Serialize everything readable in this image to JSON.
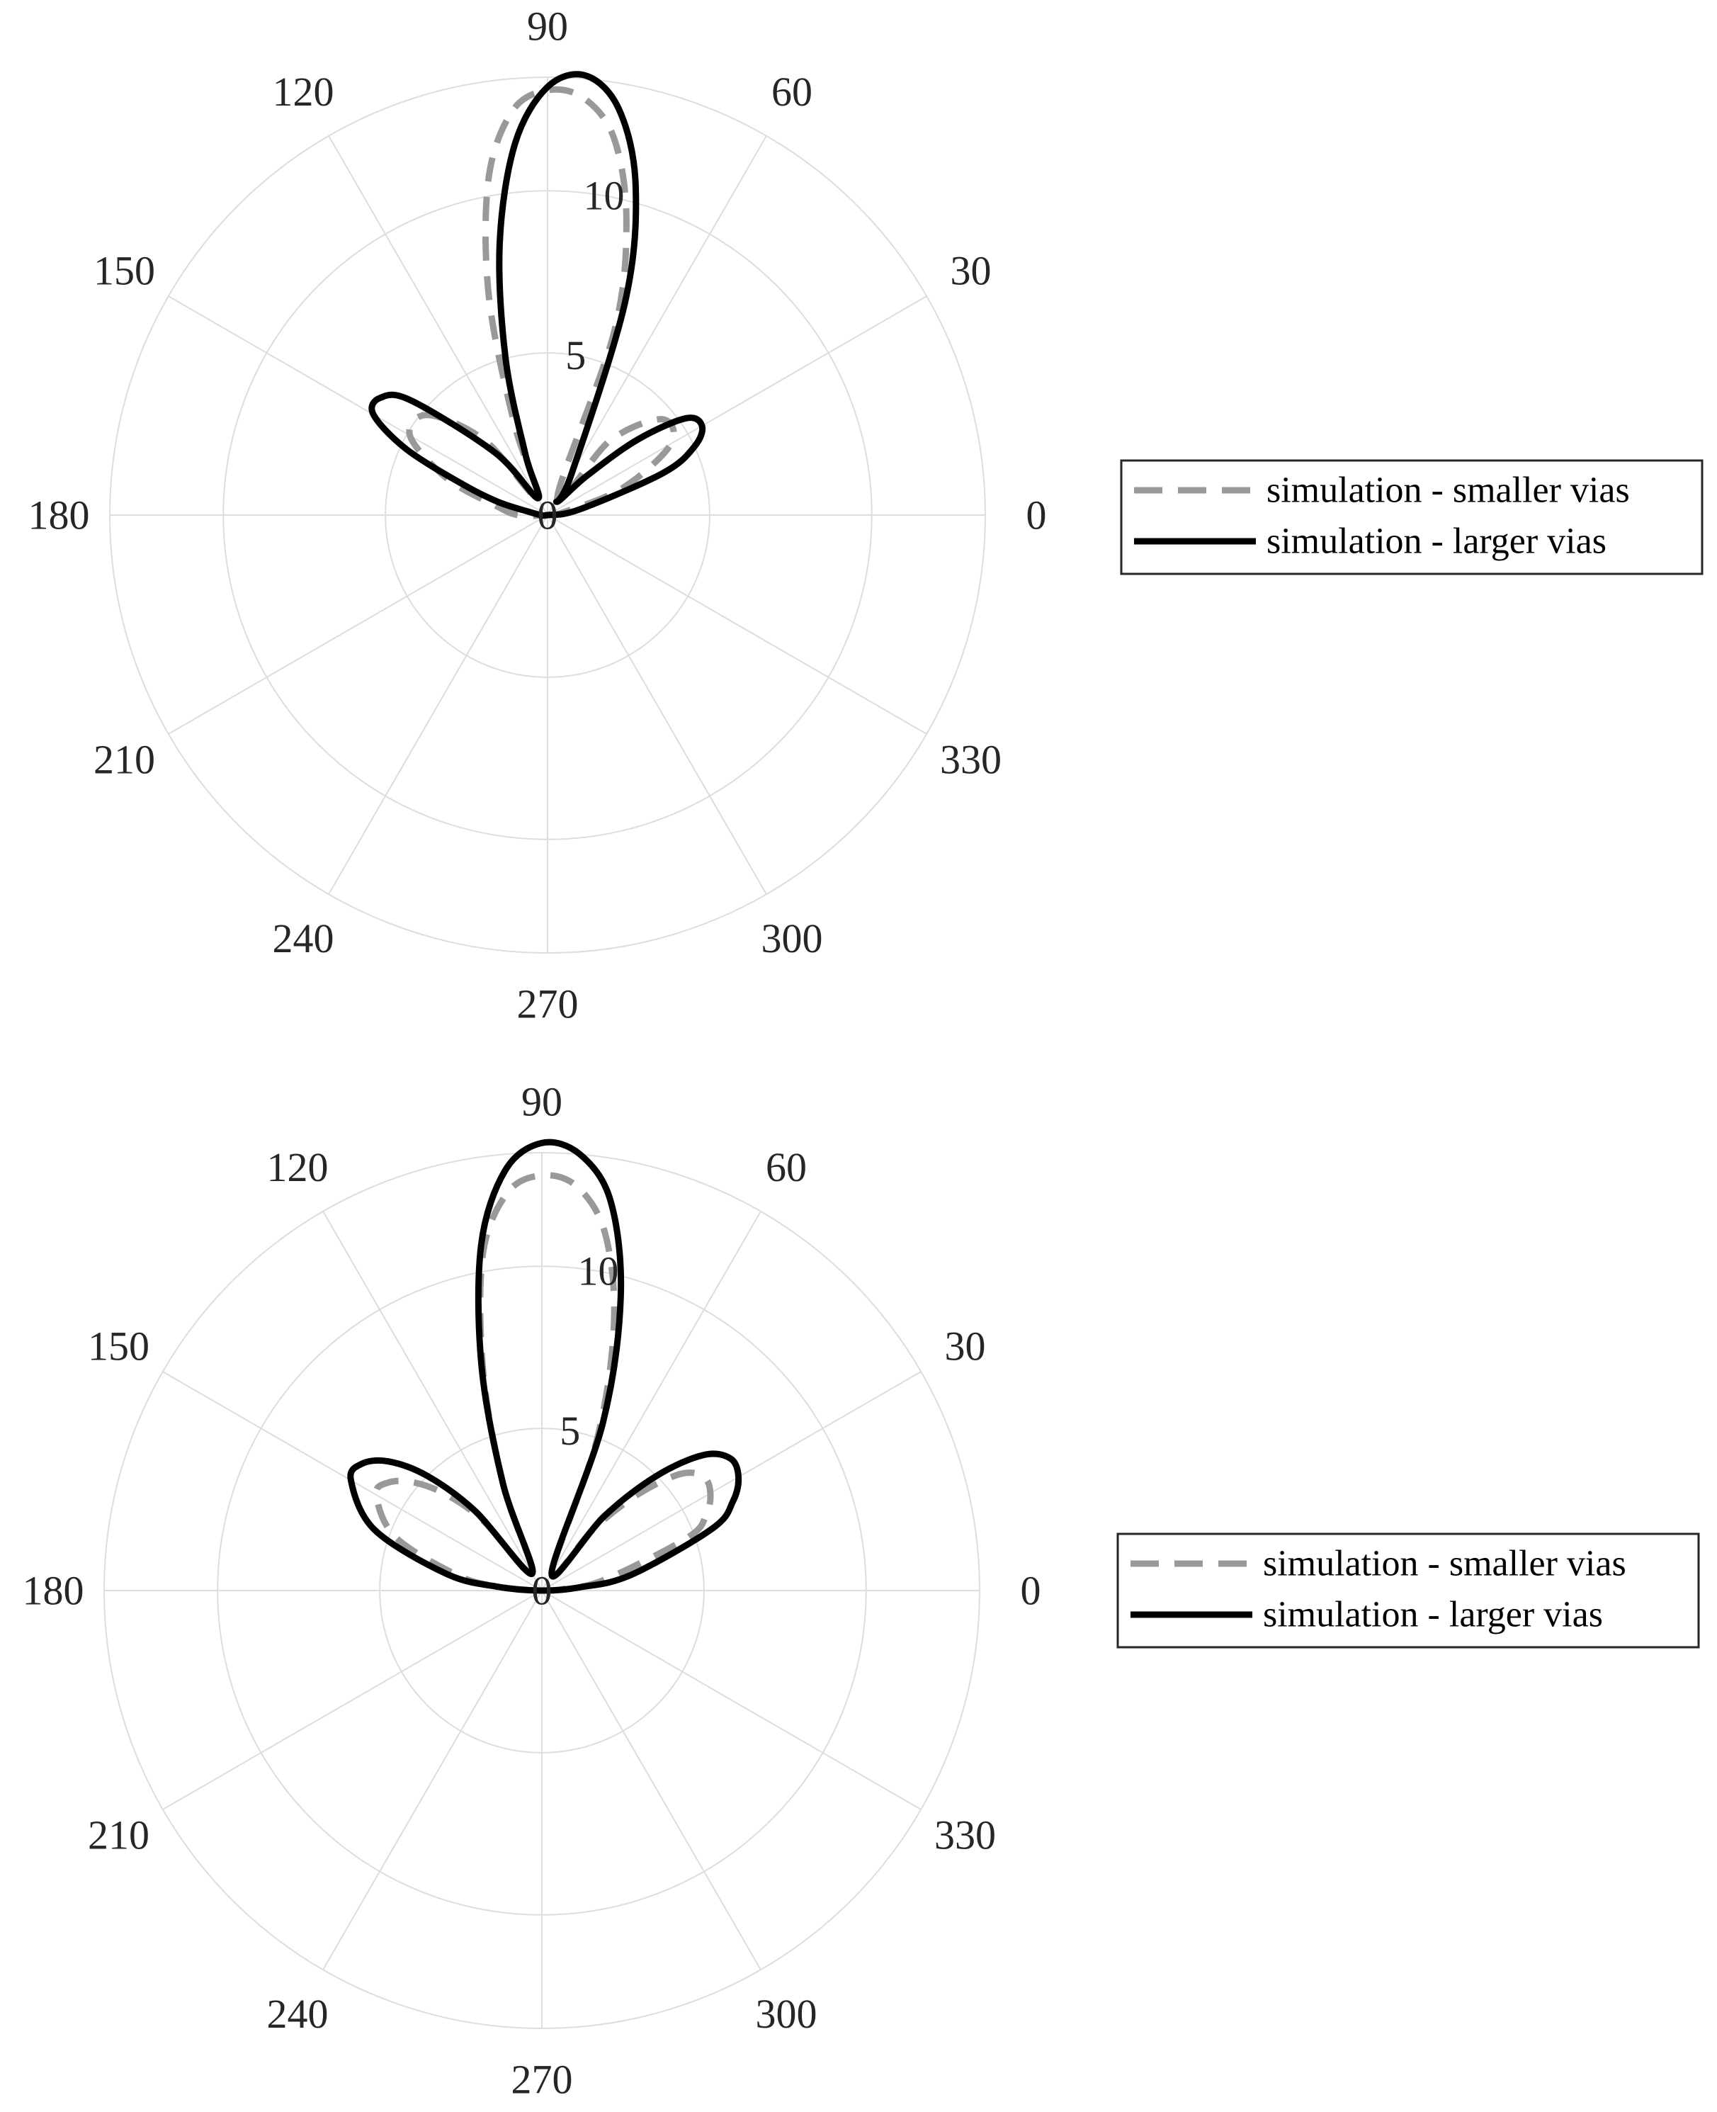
{
  "chart_data": [
    {
      "type": "polar",
      "title": "",
      "theta_unit": "degrees",
      "theta_ticks": [
        "0",
        "30",
        "60",
        "90",
        "120",
        "150",
        "180",
        "210",
        "240",
        "270",
        "300",
        "330"
      ],
      "r_ticks": [
        "0",
        "5",
        "10"
      ],
      "rlim": [
        0,
        13.5
      ],
      "grid": true,
      "legend_placement": "right",
      "series": [
        {
          "name": "simulation - smaller vias",
          "style": "dashed",
          "color": "#999999",
          "theta": [
            10,
            20,
            30,
            40,
            50,
            60,
            70,
            75,
            80,
            85,
            90,
            95,
            100,
            105,
            110,
            120,
            130,
            140,
            150,
            160,
            170,
            180
          ],
          "r": [
            0.5,
            2.5,
            4.4,
            4.6,
            3.0,
            0.6,
            6.0,
            9.4,
            11.8,
            12.9,
            13.1,
            12.5,
            10.5,
            7.0,
            3.0,
            0.6,
            3.0,
            4.8,
            4.9,
            3.3,
            1.6,
            0.9
          ]
        },
        {
          "name": "simulation - larger vias",
          "style": "solid",
          "color": "#000000",
          "theta": [
            10,
            20,
            25,
            30,
            35,
            40,
            45,
            55,
            60,
            70,
            75,
            80,
            85,
            90,
            95,
            100,
            105,
            110,
            120,
            130,
            140,
            145,
            150,
            155,
            160,
            165,
            170,
            180
          ],
          "r": [
            1.0,
            3.8,
            5.0,
            5.5,
            5.2,
            3.6,
            1.7,
            0.5,
            1.5,
            7.0,
            10.5,
            12.7,
            13.6,
            13.2,
            11.5,
            8.5,
            5.0,
            2.0,
            0.6,
            2.5,
            5.5,
            6.3,
            6.2,
            4.8,
            2.8,
            1.6,
            0.6,
            0.2
          ]
        }
      ]
    },
    {
      "type": "polar",
      "title": "",
      "theta_unit": "degrees",
      "theta_ticks": [
        "0",
        "30",
        "60",
        "90",
        "120",
        "150",
        "180",
        "210",
        "240",
        "270",
        "300",
        "330"
      ],
      "r_ticks": [
        "0",
        "5",
        "10"
      ],
      "rlim": [
        0,
        13.5
      ],
      "grid": true,
      "legend_placement": "right",
      "series": [
        {
          "name": "simulation - smaller vias",
          "style": "dashed",
          "color": "#999999",
          "theta": [
            5,
            10,
            20,
            25,
            30,
            35,
            40,
            45,
            50,
            60,
            70,
            75,
            80,
            85,
            90,
            95,
            100,
            105,
            110,
            120,
            130,
            135,
            140,
            145,
            150,
            160,
            170,
            175
          ],
          "r": [
            0.8,
            2.0,
            4.8,
            5.6,
            6.0,
            6.1,
            5.6,
            4.2,
            2.5,
            0.6,
            5.0,
            8.6,
            11.2,
            12.5,
            12.8,
            12.3,
            10.5,
            7.0,
            3.5,
            0.6,
            2.8,
            4.2,
            5.2,
            5.8,
            5.9,
            4.8,
            2.6,
            1.3
          ]
        },
        {
          "name": "simulation - larger vias",
          "style": "solid",
          "color": "#000000",
          "theta": [
            5,
            10,
            20,
            25,
            30,
            35,
            40,
            45,
            50,
            60,
            70,
            75,
            80,
            85,
            90,
            95,
            100,
            105,
            110,
            120,
            130,
            135,
            140,
            145,
            150,
            160,
            170,
            175
          ],
          "r": [
            1.2,
            2.8,
            5.6,
            6.5,
            7.0,
            7.1,
            6.5,
            5.0,
            3.0,
            0.6,
            5.5,
            9.4,
            12.2,
            13.5,
            13.8,
            13.0,
            10.8,
            7.2,
            3.5,
            0.6,
            3.2,
            5.0,
            6.2,
            6.8,
            6.8,
            5.5,
            3.0,
            1.4
          ]
        }
      ]
    }
  ]
}
